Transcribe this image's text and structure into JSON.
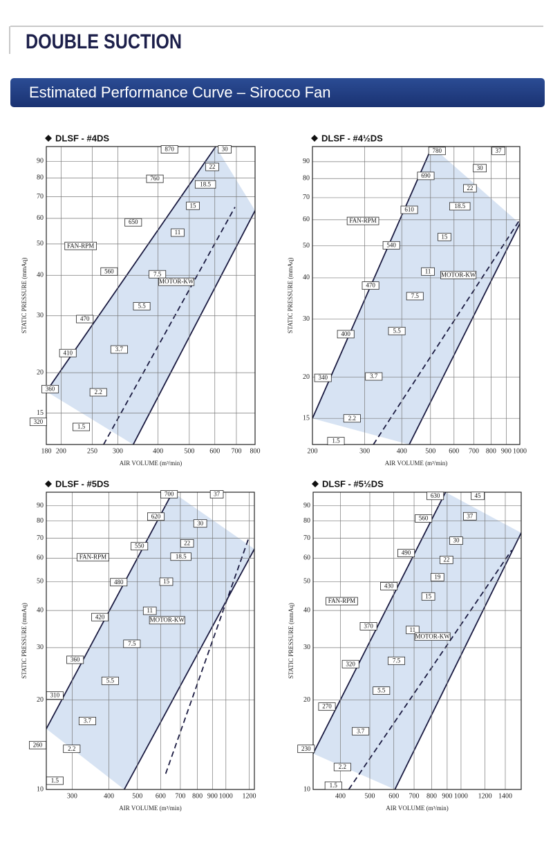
{
  "header": {
    "title": "DOUBLE SUCTION",
    "banner": "Estimated Performance Curve – Sirocco Fan"
  },
  "chart_data": [
    {
      "type": "line",
      "title": "DLSF - #4DS",
      "xlabel": "AIR VOLUME (m³/min)",
      "ylabel": "STATIC PRESSURE (mmAq)",
      "xscale": "log",
      "yscale": "log",
      "grid": true,
      "xlim": [
        180,
        800
      ],
      "ylim": [
        12,
        100
      ],
      "xticks": [
        180,
        200,
        250,
        300,
        400,
        500,
        600,
        700,
        800
      ],
      "yticks": [
        15,
        20,
        30,
        40,
        50,
        60,
        70,
        80,
        90
      ],
      "series": [
        {
          "color": "#1a1a40",
          "x": [
            180,
            604
          ],
          "values": [
            17.5,
            100
          ]
        },
        {
          "color": "#1a1a40",
          "x": [
            335,
            800
          ],
          "values": [
            12,
            63.4
          ]
        },
        {
          "color": "#1a1a40",
          "dash": true,
          "x": [
            271,
            693
          ],
          "values": [
            12,
            65
          ]
        }
      ],
      "fill_between": true,
      "fill_color": "#c9d9ef",
      "annotations": [
        {
          "text": "870",
          "x": 434,
          "y": 98
        },
        {
          "text": "760",
          "x": 391,
          "y": 79.5
        },
        {
          "text": "650",
          "x": 335,
          "y": 58.3
        },
        {
          "text": "560",
          "x": 282,
          "y": 41.1
        },
        {
          "text": "470",
          "x": 237,
          "y": 29.3
        },
        {
          "text": "410",
          "x": 210,
          "y": 23
        },
        {
          "text": "360",
          "x": 185,
          "y": 17.8
        },
        {
          "text": "320",
          "x": 170,
          "y": 14.1
        },
        {
          "text": "30",
          "x": 644,
          "y": 98
        },
        {
          "text": "22",
          "x": 589,
          "y": 86.5
        },
        {
          "text": "18.5",
          "x": 561,
          "y": 76.4
        },
        {
          "text": "15",
          "x": 513,
          "y": 65.6
        },
        {
          "text": "11",
          "x": 460,
          "y": 54.2
        },
        {
          "text": "7.5",
          "x": 398,
          "y": 40.3
        },
        {
          "text": "5.5",
          "x": 356,
          "y": 32.1
        },
        {
          "text": "3.7",
          "x": 303,
          "y": 23.6
        },
        {
          "text": "2.2",
          "x": 261,
          "y": 17.4
        },
        {
          "text": "1.5",
          "x": 231,
          "y": 13.6
        },
        {
          "text": "FAN-RPM",
          "x": 230,
          "y": 49.3
        },
        {
          "text": "MOTOR-KW",
          "x": 456,
          "y": 38.2
        }
      ]
    },
    {
      "type": "line",
      "title": "DLSF - #4½DS",
      "xlabel": "AIR VOLUME (m³/min)",
      "ylabel": "STATIC PRESSURE (mmAq)",
      "xscale": "log",
      "yscale": "log",
      "grid": true,
      "xlim": [
        200,
        1000
      ],
      "ylim": [
        12.5,
        100
      ],
      "xticks": [
        200,
        300,
        400,
        500,
        600,
        700,
        800,
        900,
        1000
      ],
      "yticks": [
        15,
        20,
        30,
        40,
        50,
        60,
        70,
        80,
        90
      ],
      "series": [
        {
          "color": "#1a1a40",
          "x": [
            200,
            506
          ],
          "values": [
            15,
            100
          ]
        },
        {
          "color": "#1a1a40",
          "x": [
            424,
            1000
          ],
          "values": [
            12.5,
            58.4
          ]
        },
        {
          "color": "#1a1a40",
          "dash": true,
          "x": [
            321,
            1000
          ],
          "values": [
            12.5,
            60
          ]
        }
      ],
      "fill_between": true,
      "fill_color": "#c9d9ef",
      "annotations": [
        {
          "text": "780",
          "x": 526,
          "y": 97
        },
        {
          "text": "690",
          "x": 482,
          "y": 81.5
        },
        {
          "text": "610",
          "x": 424,
          "y": 64.3
        },
        {
          "text": "540",
          "x": 369,
          "y": 50.2
        },
        {
          "text": "470",
          "x": 314,
          "y": 37.9
        },
        {
          "text": "400",
          "x": 259,
          "y": 27
        },
        {
          "text": "340",
          "x": 217,
          "y": 19.9
        },
        {
          "text": "37",
          "x": 847,
          "y": 97
        },
        {
          "text": "30",
          "x": 733,
          "y": 86
        },
        {
          "text": "22",
          "x": 679,
          "y": 74.7
        },
        {
          "text": "18.5",
          "x": 628,
          "y": 65.9
        },
        {
          "text": "15",
          "x": 557,
          "y": 53.2
        },
        {
          "text": "11",
          "x": 490,
          "y": 41.8
        },
        {
          "text": "7.5",
          "x": 443,
          "y": 35.2
        },
        {
          "text": "5.5",
          "x": 385,
          "y": 27.6
        },
        {
          "text": "3.7",
          "x": 322,
          "y": 20.1
        },
        {
          "text": "2.2",
          "x": 272,
          "y": 15
        },
        {
          "text": "1.5",
          "x": 240,
          "y": 12.8
        },
        {
          "text": "FAN-RPM",
          "x": 296,
          "y": 59.5
        },
        {
          "text": "MOTOR-KW",
          "x": 621,
          "y": 40.8
        }
      ]
    },
    {
      "type": "line",
      "title": "DLSF - #5DS",
      "xlabel": "AIR VOLUME (m³/min)",
      "ylabel": "STATIC PRESSURE (mmAq)",
      "xscale": "log",
      "yscale": "log",
      "grid": true,
      "xlim": [
        245,
        1250
      ],
      "ylim": [
        10,
        100
      ],
      "xticks": [
        300,
        400,
        500,
        600,
        700,
        800,
        900,
        1000,
        1200
      ],
      "yticks": [
        10,
        20,
        30,
        40,
        50,
        60,
        70,
        80,
        90
      ],
      "series": [
        {
          "color": "#1a1a40",
          "x": [
            245,
            659
          ],
          "values": [
            16,
            100
          ]
        },
        {
          "color": "#1a1a40",
          "x": [
            451,
            1250
          ],
          "values": [
            10,
            64.4
          ]
        },
        {
          "color": "#1a1a40",
          "dash": true,
          "x": [
            624,
            1194
          ],
          "values": [
            11.3,
            69.8
          ]
        }
      ],
      "fill_between": true,
      "fill_color": "#c9d9ef",
      "annotations": [
        {
          "text": "700",
          "x": 641,
          "y": 98.4
        },
        {
          "text": "620",
          "x": 578,
          "y": 82.8
        },
        {
          "text": "550",
          "x": 508,
          "y": 65.8
        },
        {
          "text": "480",
          "x": 432,
          "y": 49.8
        },
        {
          "text": "420",
          "x": 373,
          "y": 38
        },
        {
          "text": "360",
          "x": 307,
          "y": 27.3
        },
        {
          "text": "310",
          "x": 262,
          "y": 20.7
        },
        {
          "text": "260",
          "x": 229,
          "y": 14.1
        },
        {
          "text": "37",
          "x": 931,
          "y": 98.4
        },
        {
          "text": "30",
          "x": 818,
          "y": 78.5
        },
        {
          "text": "22",
          "x": 738,
          "y": 67.3
        },
        {
          "text": "18.5",
          "x": 703,
          "y": 60.7
        },
        {
          "text": "15",
          "x": 627,
          "y": 50
        },
        {
          "text": "11",
          "x": 551,
          "y": 39.9
        },
        {
          "text": "7.5",
          "x": 479,
          "y": 30.9
        },
        {
          "text": "5.5",
          "x": 404,
          "y": 23.2
        },
        {
          "text": "3.7",
          "x": 338,
          "y": 17
        },
        {
          "text": "2.2",
          "x": 299,
          "y": 13.7
        },
        {
          "text": "1.5",
          "x": 262,
          "y": 10.7
        },
        {
          "text": "FAN-RPM",
          "x": 353,
          "y": 60.4
        },
        {
          "text": "MOTOR-KW",
          "x": 631,
          "y": 37.1
        }
      ]
    },
    {
      "type": "line",
      "title": "DLSF - #5½DS",
      "xlabel": "AIR VOLUME (m³/min)",
      "ylabel": "STATIC PRESSURE (mmAq)",
      "xscale": "log",
      "yscale": "log",
      "grid": true,
      "xlim": [
        325,
        1580
      ],
      "ylim": [
        10,
        100
      ],
      "xticks": [
        400,
        500,
        600,
        700,
        800,
        900,
        1000,
        1200,
        1400
      ],
      "yticks": [
        10,
        20,
        30,
        40,
        50,
        60,
        70,
        80,
        90
      ],
      "series": [
        {
          "color": "#1a1a40",
          "x": [
            325,
            889
          ],
          "values": [
            13.2,
            100
          ]
        },
        {
          "color": "#1a1a40",
          "x": [
            605,
            1580
          ],
          "values": [
            10,
            73
          ]
        },
        {
          "color": "#1a1a40",
          "dash": true,
          "x": [
            426,
            1469
          ],
          "values": [
            10,
            63.8
          ]
        }
      ],
      "fill_between": true,
      "fill_color": "#c9d9ef",
      "annotations": [
        {
          "text": "630",
          "x": 822,
          "y": 97.2
        },
        {
          "text": "560",
          "x": 752,
          "y": 81.6
        },
        {
          "text": "490",
          "x": 659,
          "y": 62.4
        },
        {
          "text": "430",
          "x": 578,
          "y": 48.3
        },
        {
          "text": "370",
          "x": 495,
          "y": 35.4
        },
        {
          "text": "320",
          "x": 432,
          "y": 26.4
        },
        {
          "text": "270",
          "x": 361,
          "y": 19
        },
        {
          "text": "230",
          "x": 308,
          "y": 13.7
        },
        {
          "text": "45",
          "x": 1135,
          "y": 97.2
        },
        {
          "text": "37",
          "x": 1070,
          "y": 83
        },
        {
          "text": "30",
          "x": 964,
          "y": 68.7
        },
        {
          "text": "22",
          "x": 895,
          "y": 59.2
        },
        {
          "text": "19",
          "x": 836,
          "y": 51.8
        },
        {
          "text": "15",
          "x": 780,
          "y": 44.6
        },
        {
          "text": "11",
          "x": 692,
          "y": 34.4
        },
        {
          "text": "7.5",
          "x": 612,
          "y": 27.1
        },
        {
          "text": "5.5",
          "x": 546,
          "y": 21.5
        },
        {
          "text": "3.7",
          "x": 466,
          "y": 15.7
        },
        {
          "text": "2.2",
          "x": 406,
          "y": 11.9
        },
        {
          "text": "1.5",
          "x": 379,
          "y": 10.3
        },
        {
          "text": "FAN-RPM",
          "x": 404,
          "y": 43
        },
        {
          "text": "MOTOR-KW",
          "x": 805,
          "y": 32.7
        }
      ]
    }
  ]
}
